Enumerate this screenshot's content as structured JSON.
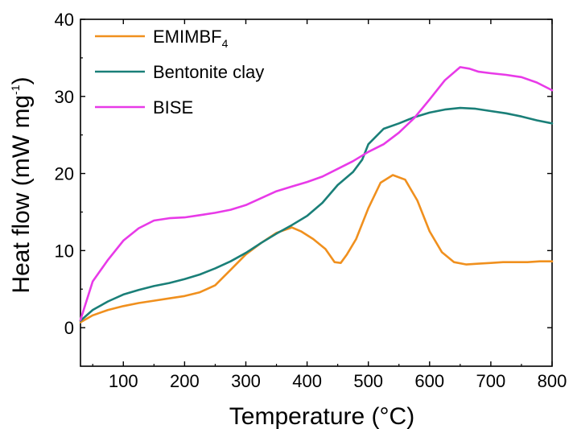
{
  "chart_data": {
    "type": "line",
    "xlabel_main": "Temperature (",
    "xlabel_unit": "°C",
    "xlabel_close": ")",
    "ylabel_main": "Heat flow (mW mg",
    "ylabel_sup": "-1",
    "ylabel_close": ")",
    "xlim": [
      30,
      800
    ],
    "ylim": [
      -5,
      40
    ],
    "x_ticks": [
      100,
      200,
      300,
      400,
      500,
      600,
      700,
      800
    ],
    "y_ticks": [
      0,
      10,
      20,
      30,
      40
    ],
    "legend_position": "top-left",
    "grid": false,
    "series": [
      {
        "name_main": "EMIMBF",
        "name_sub": "4",
        "color": "#f0901e",
        "x": [
          30,
          50,
          75,
          100,
          125,
          150,
          175,
          200,
          225,
          250,
          275,
          300,
          325,
          350,
          375,
          390,
          410,
          430,
          445,
          455,
          465,
          480,
          500,
          520,
          540,
          560,
          580,
          600,
          620,
          640,
          660,
          680,
          700,
          720,
          740,
          760,
          780,
          800
        ],
        "y": [
          0.7,
          1.6,
          2.3,
          2.8,
          3.2,
          3.5,
          3.8,
          4.1,
          4.6,
          5.5,
          7.5,
          9.5,
          11.0,
          12.3,
          13.0,
          12.5,
          11.5,
          10.2,
          8.5,
          8.4,
          9.5,
          11.5,
          15.5,
          18.8,
          19.8,
          19.2,
          16.5,
          12.5,
          9.8,
          8.5,
          8.2,
          8.3,
          8.4,
          8.5,
          8.5,
          8.5,
          8.6,
          8.6
        ]
      },
      {
        "name_main": "Bentonite clay",
        "name_sub": "",
        "color": "#1a7f78",
        "x": [
          30,
          50,
          75,
          100,
          125,
          150,
          175,
          200,
          225,
          250,
          275,
          300,
          325,
          350,
          375,
          400,
          425,
          450,
          475,
          490,
          500,
          525,
          550,
          575,
          600,
          625,
          650,
          675,
          700,
          725,
          750,
          775,
          800
        ],
        "y": [
          0.9,
          2.3,
          3.4,
          4.3,
          4.9,
          5.4,
          5.8,
          6.3,
          6.9,
          7.7,
          8.6,
          9.7,
          11.0,
          12.2,
          13.3,
          14.5,
          16.2,
          18.5,
          20.2,
          21.8,
          23.8,
          25.8,
          26.5,
          27.3,
          27.9,
          28.3,
          28.5,
          28.4,
          28.1,
          27.8,
          27.4,
          26.9,
          26.5
        ]
      },
      {
        "name_main": "BISE",
        "name_sub": "",
        "color": "#e83ae8",
        "x": [
          30,
          50,
          75,
          100,
          125,
          150,
          175,
          200,
          225,
          250,
          275,
          300,
          325,
          350,
          375,
          400,
          425,
          450,
          475,
          500,
          525,
          550,
          575,
          600,
          625,
          650,
          665,
          680,
          700,
          725,
          750,
          775,
          800
        ],
        "y": [
          1.0,
          6.0,
          8.8,
          11.3,
          12.9,
          13.9,
          14.2,
          14.3,
          14.6,
          14.9,
          15.3,
          15.9,
          16.8,
          17.7,
          18.3,
          18.9,
          19.6,
          20.6,
          21.6,
          22.8,
          23.8,
          25.3,
          27.2,
          29.6,
          32.1,
          33.8,
          33.6,
          33.2,
          33.0,
          32.8,
          32.5,
          31.8,
          30.8
        ]
      }
    ]
  }
}
